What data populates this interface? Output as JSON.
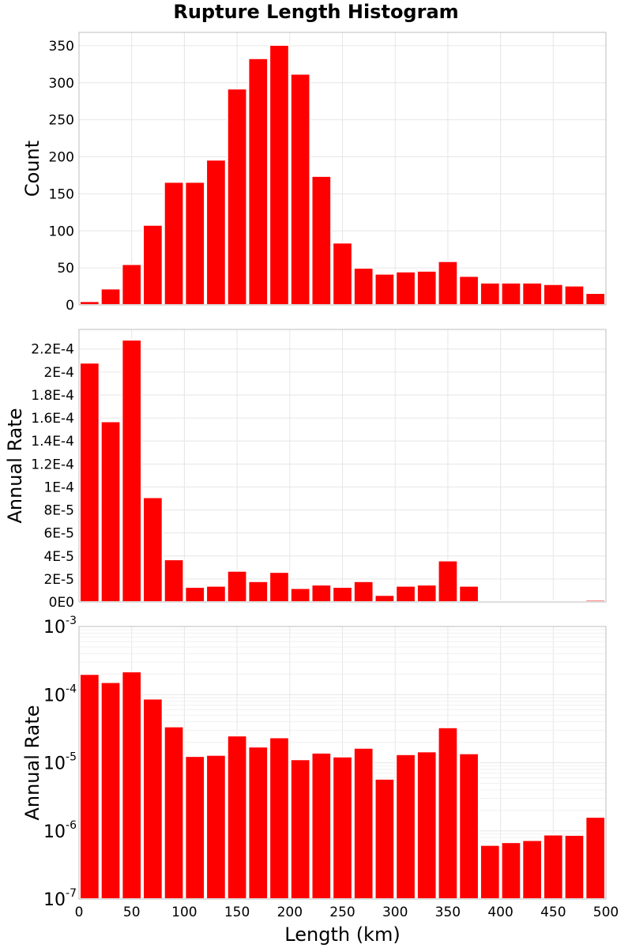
{
  "chart_data": [
    {
      "type": "bar",
      "title": "Rupture Length Histogram",
      "ylabel": "Count",
      "xlabel": "",
      "scale": "linear",
      "xlim": [
        0,
        500
      ],
      "ylim": [
        0,
        368
      ],
      "bin_width": 20,
      "bin_starts": [
        0,
        20,
        40,
        60,
        80,
        100,
        120,
        140,
        160,
        180,
        200,
        220,
        240,
        260,
        280,
        300,
        320,
        340,
        360,
        380,
        400,
        420,
        440,
        460,
        480
      ],
      "values": [
        5,
        22,
        55,
        108,
        166,
        166,
        196,
        292,
        333,
        351,
        312,
        174,
        84,
        50,
        42,
        45,
        46,
        59,
        39,
        30,
        30,
        30,
        28,
        26,
        16
      ],
      "yticks": [
        {
          "v": 0,
          "label": "0"
        },
        {
          "v": 50,
          "label": "50"
        },
        {
          "v": 100,
          "label": "100"
        },
        {
          "v": 150,
          "label": "150"
        },
        {
          "v": 200,
          "label": "200"
        },
        {
          "v": 250,
          "label": "250"
        },
        {
          "v": 300,
          "label": "300"
        },
        {
          "v": 350,
          "label": "350"
        }
      ]
    },
    {
      "type": "bar",
      "ylabel": "Annual Rate",
      "xlabel": "",
      "scale": "linear",
      "xlim": [
        0,
        500
      ],
      "ylim": [
        0,
        0.000237
      ],
      "bin_width": 20,
      "bin_starts": [
        0,
        20,
        40,
        60,
        80,
        100,
        120,
        140,
        160,
        180,
        200,
        220,
        240,
        260,
        280,
        300,
        320,
        340,
        360,
        380,
        400,
        420,
        440,
        460,
        480
      ],
      "values": [
        0.000208,
        0.000157,
        0.000228,
        9.1e-05,
        3.7e-05,
        1.3e-05,
        1.4e-05,
        2.7e-05,
        1.8e-05,
        2.6e-05,
        1.2e-05,
        1.5e-05,
        1.3e-05,
        1.8e-05,
        6e-06,
        1.4e-05,
        1.5e-05,
        3.6e-05,
        1.4e-05,
        7e-07,
        7e-07,
        8e-07,
        9e-07,
        9e-07,
        1.7e-06
      ],
      "yticks": [
        {
          "v": 0,
          "label": "0E0"
        },
        {
          "v": 2e-05,
          "label": "2E-5"
        },
        {
          "v": 4e-05,
          "label": "4E-5"
        },
        {
          "v": 6e-05,
          "label": "6E-5"
        },
        {
          "v": 8e-05,
          "label": "8E-5"
        },
        {
          "v": 0.0001,
          "label": "1E-4"
        },
        {
          "v": 0.00012,
          "label": "1.2E-4"
        },
        {
          "v": 0.00014,
          "label": "1.4E-4"
        },
        {
          "v": 0.00016,
          "label": "1.6E-4"
        },
        {
          "v": 0.00018,
          "label": "1.8E-4"
        },
        {
          "v": 0.0002,
          "label": "2E-4"
        },
        {
          "v": 0.00022,
          "label": "2.2E-4"
        }
      ]
    },
    {
      "type": "bar",
      "ylabel": "Annual Rate",
      "xlabel": "Length (km)",
      "scale": "log",
      "xlim": [
        0,
        500
      ],
      "ylim": [
        1e-07,
        0.001
      ],
      "bin_width": 20,
      "bin_starts": [
        0,
        20,
        40,
        60,
        80,
        100,
        120,
        140,
        160,
        180,
        200,
        220,
        240,
        260,
        280,
        300,
        320,
        340,
        360,
        380,
        400,
        420,
        440,
        460,
        480
      ],
      "values": [
        0.0002,
        0.000152,
        0.000218,
        8.7e-05,
        3.4e-05,
        1.25e-05,
        1.3e-05,
        2.5e-05,
        1.72e-05,
        2.35e-05,
        1.12e-05,
        1.4e-05,
        1.23e-05,
        1.65e-05,
        5.8e-06,
        1.33e-05,
        1.46e-05,
        3.3e-05,
        1.37e-05,
        6.2e-07,
        6.8e-07,
        7.3e-07,
        8.8e-07,
        8.7e-07,
        1.6e-06
      ],
      "yticks": [
        {
          "v": 1e-07,
          "base": "10",
          "exp": "-7"
        },
        {
          "v": 1e-06,
          "base": "10",
          "exp": "-6"
        },
        {
          "v": 1e-05,
          "base": "10",
          "exp": "-5"
        },
        {
          "v": 0.0001,
          "base": "10",
          "exp": "-4"
        },
        {
          "v": 0.001,
          "base": "10",
          "exp": "-3"
        }
      ],
      "xticks": [
        {
          "v": 0,
          "label": "0"
        },
        {
          "v": 50,
          "label": "50"
        },
        {
          "v": 100,
          "label": "100"
        },
        {
          "v": 150,
          "label": "150"
        },
        {
          "v": 200,
          "label": "200"
        },
        {
          "v": 250,
          "label": "250"
        },
        {
          "v": 300,
          "label": "300"
        },
        {
          "v": 350,
          "label": "350"
        },
        {
          "v": 400,
          "label": "400"
        },
        {
          "v": 450,
          "label": "450"
        },
        {
          "v": 500,
          "label": "500"
        }
      ]
    }
  ],
  "colors": {
    "bar": "#ff0000",
    "bar_edge": "#ffffff",
    "grid": "#e6e6e6",
    "frame": "#bdbdbd"
  }
}
